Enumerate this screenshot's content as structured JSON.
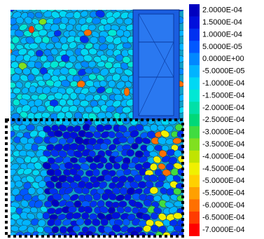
{
  "legend": {
    "items": [
      {
        "label": "2.0000E-04",
        "color": "#0000c0"
      },
      {
        "label": "1.5000E-04",
        "color": "#0010dc"
      },
      {
        "label": "1.0000E-04",
        "color": "#0030f0"
      },
      {
        "label": "5.0000E-05",
        "color": "#0058ff"
      },
      {
        "label": "0.0000E+00",
        "color": "#0088ff"
      },
      {
        "label": "-5.0000E-05",
        "color": "#00b4ff"
      },
      {
        "label": "-1.0000E-04",
        "color": "#00d8f4"
      },
      {
        "label": "-1.5000E-04",
        "color": "#00e8d4"
      },
      {
        "label": "-2.0000E-04",
        "color": "#00e0a8"
      },
      {
        "label": "-2.5000E-04",
        "color": "#00d878"
      },
      {
        "label": "-3.0000E-04",
        "color": "#40dc40"
      },
      {
        "label": "-3.5000E-04",
        "color": "#80e020"
      },
      {
        "label": "-4.0000E-04",
        "color": "#c0e400"
      },
      {
        "label": "-4.5000E-04",
        "color": "#f0f000"
      },
      {
        "label": "-5.0000E-04",
        "color": "#ffd000"
      },
      {
        "label": "-5.5000E-04",
        "color": "#ffa000"
      },
      {
        "label": "-6.0000E-04",
        "color": "#ff7000"
      },
      {
        "label": "-6.5000E-04",
        "color": "#ff3c00"
      },
      {
        "label": "-7.0000E-04",
        "color": "#ff0000"
      }
    ]
  }
}
